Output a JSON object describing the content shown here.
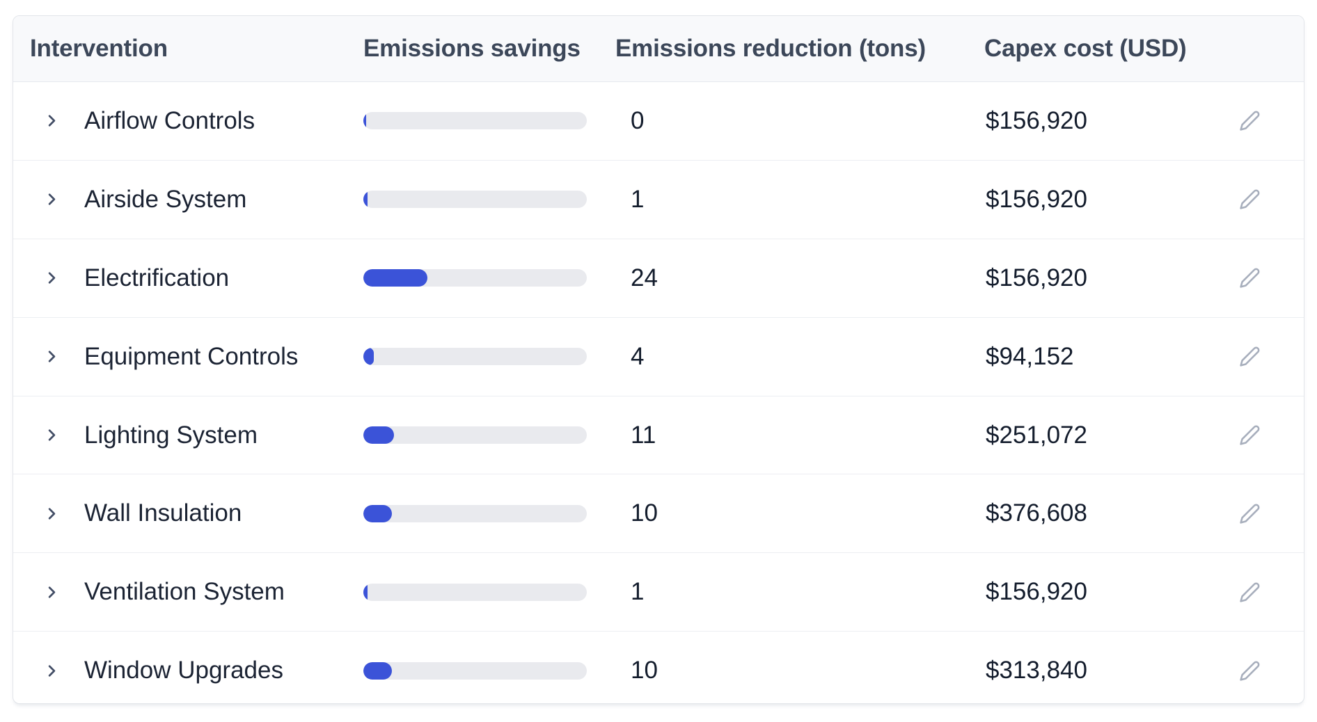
{
  "table": {
    "columns": [
      {
        "key": "intervention",
        "label": "Intervention"
      },
      {
        "key": "savings",
        "label": "Emissions savings"
      },
      {
        "key": "reduction",
        "label": "Emissions reduction (tons)"
      },
      {
        "key": "capex",
        "label": "Capex cost (USD)"
      },
      {
        "key": "actions",
        "label": ""
      }
    ],
    "rows": [
      {
        "intervention": "Airflow Controls",
        "savings_bar_pct": 1.2,
        "reduction_tons": "0",
        "capex": "$156,920"
      },
      {
        "intervention": "Airside System",
        "savings_bar_pct": 2.0,
        "reduction_tons": "1",
        "capex": "$156,920"
      },
      {
        "intervention": "Electrification",
        "savings_bar_pct": 28.7,
        "reduction_tons": "24",
        "capex": "$156,920"
      },
      {
        "intervention": "Equipment Controls",
        "savings_bar_pct": 4.7,
        "reduction_tons": "4",
        "capex": "$94,152"
      },
      {
        "intervention": "Lighting System",
        "savings_bar_pct": 13.7,
        "reduction_tons": "11",
        "capex": "$251,072"
      },
      {
        "intervention": "Wall Insulation",
        "savings_bar_pct": 12.8,
        "reduction_tons": "10",
        "capex": "$376,608"
      },
      {
        "intervention": "Ventilation System",
        "savings_bar_pct": 2.0,
        "reduction_tons": "1",
        "capex": "$156,920"
      },
      {
        "intervention": "Window Upgrades",
        "savings_bar_pct": 12.8,
        "reduction_tons": "10",
        "capex": "$313,840"
      }
    ]
  },
  "icons": {
    "row_expander": "chevron-right-icon",
    "row_action": "pencil-icon"
  },
  "colors": {
    "bar_fill": "#3b53d8",
    "bar_track": "#e9eaee",
    "header_bg": "#f8f9fb",
    "header_text": "#3c4759",
    "header_border": "#e6e8ee",
    "row_divider": "#eceef2",
    "row_text": "#1b2333",
    "value_text": "#131c2c",
    "card_border": "#e2e5ea",
    "chevron": "#434e66",
    "pencil": "#a7aebc"
  }
}
